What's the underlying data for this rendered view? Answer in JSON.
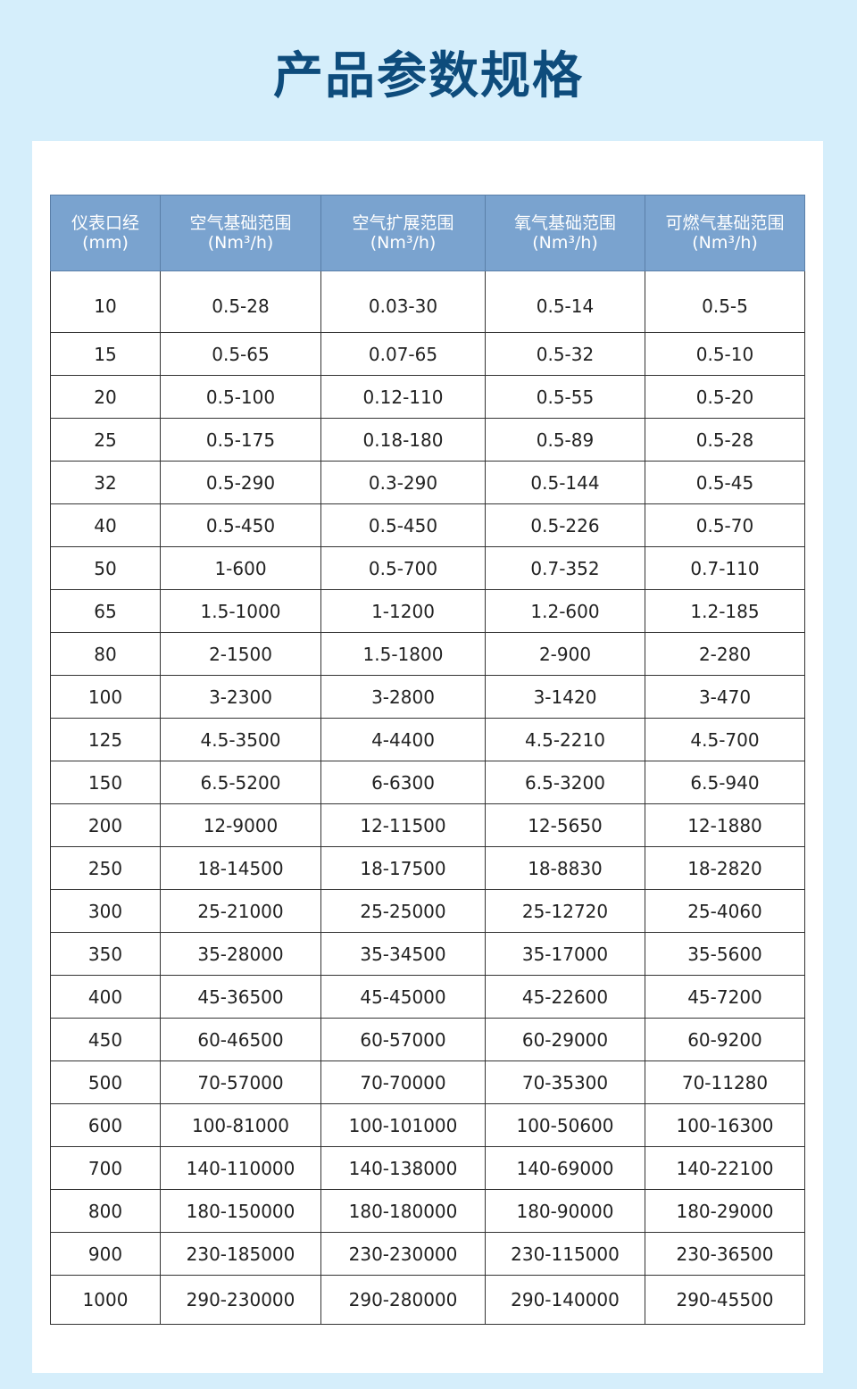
{
  "title": "产品参数规格",
  "table": {
    "headers": [
      {
        "label": "仪表口经",
        "unit": "(mm)"
      },
      {
        "label": "空气基础范围",
        "unit": "(Nm³/h)"
      },
      {
        "label": "空气扩展范围",
        "unit": "(Nm³/h)"
      },
      {
        "label": "氧气基础范围",
        "unit": "(Nm³/h)"
      },
      {
        "label": "可燃气基础范围",
        "unit": "(Nm³/h)"
      }
    ],
    "rows": [
      [
        "10",
        "0.5-28",
        "0.03-30",
        "0.5-14",
        "0.5-5"
      ],
      [
        "15",
        "0.5-65",
        "0.07-65",
        "0.5-32",
        "0.5-10"
      ],
      [
        "20",
        "0.5-100",
        "0.12-110",
        "0.5-55",
        "0.5-20"
      ],
      [
        "25",
        "0.5-175",
        "0.18-180",
        "0.5-89",
        "0.5-28"
      ],
      [
        "32",
        "0.5-290",
        "0.3-290",
        "0.5-144",
        "0.5-45"
      ],
      [
        "40",
        "0.5-450",
        "0.5-450",
        "0.5-226",
        "0.5-70"
      ],
      [
        "50",
        "1-600",
        "0.5-700",
        "0.7-352",
        "0.7-110"
      ],
      [
        "65",
        "1.5-1000",
        "1-1200",
        "1.2-600",
        "1.2-185"
      ],
      [
        "80",
        "2-1500",
        "1.5-1800",
        "2-900",
        "2-280"
      ],
      [
        "100",
        "3-2300",
        "3-2800",
        "3-1420",
        "3-470"
      ],
      [
        "125",
        "4.5-3500",
        "4-4400",
        "4.5-2210",
        "4.5-700"
      ],
      [
        "150",
        "6.5-5200",
        "6-6300",
        "6.5-3200",
        "6.5-940"
      ],
      [
        "200",
        "12-9000",
        "12-11500",
        "12-5650",
        "12-1880"
      ],
      [
        "250",
        "18-14500",
        "18-17500",
        "18-8830",
        "18-2820"
      ],
      [
        "300",
        "25-21000",
        "25-25000",
        "25-12720",
        "25-4060"
      ],
      [
        "350",
        "35-28000",
        "35-34500",
        "35-17000",
        "35-5600"
      ],
      [
        "400",
        "45-36500",
        "45-45000",
        "45-22600",
        "45-7200"
      ],
      [
        "450",
        "60-46500",
        "60-57000",
        "60-29000",
        "60-9200"
      ],
      [
        "500",
        "70-57000",
        "70-70000",
        "70-35300",
        "70-11280"
      ],
      [
        "600",
        "100-81000",
        "100-101000",
        "100-50600",
        "100-16300"
      ],
      [
        "700",
        "140-110000",
        "140-138000",
        "140-69000",
        "140-22100"
      ],
      [
        "800",
        "180-150000",
        "180-180000",
        "180-90000",
        "180-29000"
      ],
      [
        "900",
        "230-185000",
        "230-230000",
        "230-115000",
        "230-36500"
      ],
      [
        "1000",
        "290-230000",
        "290-280000",
        "290-140000",
        "290-45500"
      ]
    ]
  }
}
